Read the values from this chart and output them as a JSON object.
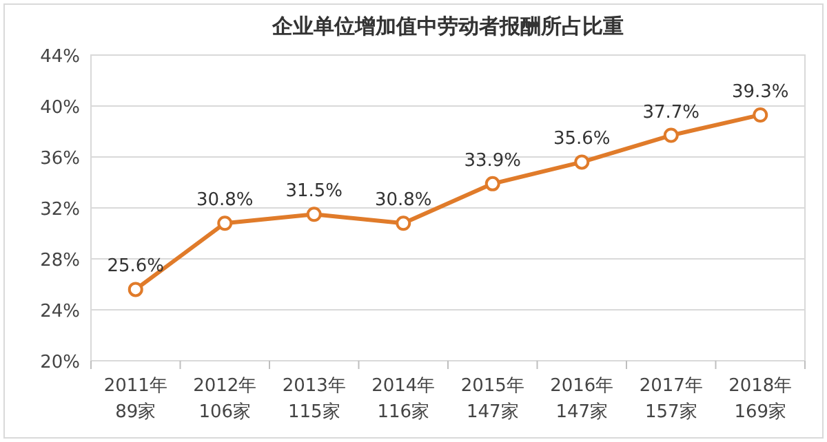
{
  "chart_data": {
    "type": "line",
    "title": "企业单位增加值中劳动者报酬所占比重",
    "categories": [
      "2011年\n89家",
      "2012年\n106家",
      "2013年\n115家",
      "2014年\n116家",
      "2015年\n147家",
      "2016年\n147家",
      "2017年\n157家",
      "2018年\n169家"
    ],
    "series": [
      {
        "color": "#e07b2a",
        "values": [
          25.6,
          30.8,
          31.5,
          30.8,
          33.9,
          35.6,
          37.7,
          39.3
        ],
        "value_labels": [
          "25.6%",
          "30.8%",
          "31.5%",
          "30.8%",
          "33.9%",
          "35.6%",
          "37.7%",
          "39.3%"
        ]
      }
    ],
    "ylim": [
      20,
      44
    ],
    "yticks": [
      {
        "value": 20,
        "label": "20%"
      },
      {
        "value": 24,
        "label": "24%"
      },
      {
        "value": 28,
        "label": "28%"
      },
      {
        "value": 32,
        "label": "32%"
      },
      {
        "value": 36,
        "label": "36%"
      },
      {
        "value": 40,
        "label": "40%"
      },
      {
        "value": 44,
        "label": "44%"
      }
    ],
    "grid": "y",
    "marker": "circle",
    "line_style": "solid"
  }
}
